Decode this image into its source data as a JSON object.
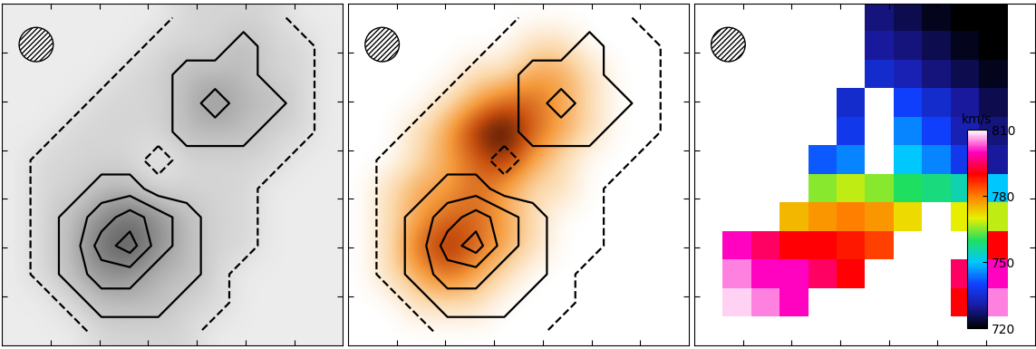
{
  "chart_data": [
    {
      "type": "contour_image",
      "tick_labels": false,
      "contour_levels": [
        0.5,
        1.5,
        2.5,
        3.5,
        4.5
      ],
      "cells": [
        [
          0,
          0,
          0,
          0,
          0,
          0,
          1,
          1,
          1,
          1,
          0,
          0
        ],
        [
          0,
          0,
          0,
          0,
          0,
          1,
          1,
          1,
          2,
          1,
          1,
          0
        ],
        [
          0,
          0,
          0,
          0,
          1,
          1,
          2,
          2,
          2,
          1,
          1,
          0
        ],
        [
          0,
          0,
          0,
          1,
          1,
          1,
          2,
          3,
          2,
          2,
          1,
          0
        ],
        [
          0,
          0,
          1,
          1,
          1,
          1,
          2,
          2,
          2,
          1,
          1,
          0
        ],
        [
          0,
          1,
          1,
          1,
          1,
          0,
          1,
          1,
          1,
          1,
          0,
          0
        ],
        [
          0,
          1,
          1,
          2,
          2,
          1,
          1,
          1,
          1,
          0,
          0,
          0
        ],
        [
          0,
          1,
          2,
          3,
          4,
          3,
          2,
          1,
          1,
          0,
          0,
          0
        ],
        [
          0,
          1,
          2,
          4,
          5,
          3,
          2,
          1,
          1,
          0,
          0,
          0
        ],
        [
          0,
          1,
          2,
          3,
          3,
          2,
          2,
          1,
          0,
          0,
          0,
          0
        ],
        [
          0,
          0,
          1,
          2,
          2,
          2,
          1,
          1,
          0,
          0,
          0,
          0
        ],
        [
          0,
          0,
          0,
          1,
          1,
          1,
          1,
          0,
          0,
          0,
          0,
          0
        ]
      ]
    },
    {
      "type": "image",
      "tick_labels": false,
      "cells": [
        [
          0,
          0,
          0,
          0,
          0,
          0,
          0,
          0,
          0,
          0,
          0,
          0
        ],
        [
          0,
          0,
          0,
          0,
          0,
          0,
          1,
          1,
          0,
          0,
          0,
          0
        ],
        [
          0,
          0,
          0,
          0,
          1,
          1,
          2,
          2,
          1,
          0,
          0,
          0
        ],
        [
          0,
          0,
          0,
          1,
          2,
          3,
          3,
          2,
          1,
          0,
          0,
          0
        ],
        [
          0,
          0,
          1,
          2,
          4,
          5,
          3,
          2,
          1,
          0,
          0,
          0
        ],
        [
          0,
          0,
          1,
          2,
          3,
          4,
          2,
          1,
          0,
          0,
          0,
          0
        ],
        [
          0,
          1,
          2,
          2,
          3,
          2,
          1,
          1,
          0,
          0,
          0,
          0
        ],
        [
          0,
          1,
          2,
          3,
          3,
          2,
          1,
          0,
          0,
          0,
          0,
          0
        ],
        [
          0,
          1,
          3,
          4,
          3,
          2,
          1,
          0,
          0,
          0,
          0,
          0
        ],
        [
          0,
          1,
          2,
          3,
          2,
          1,
          0,
          0,
          0,
          0,
          0,
          0
        ],
        [
          0,
          0,
          1,
          1,
          1,
          0,
          0,
          0,
          0,
          0,
          0,
          0
        ],
        [
          0,
          0,
          0,
          0,
          0,
          0,
          0,
          0,
          0,
          0,
          0,
          0
        ]
      ]
    },
    {
      "type": "velocity_field",
      "tick_labels": false,
      "cells": [
        [
          null,
          null,
          null,
          null,
          null,
          null,
          728,
          725,
          722,
          720,
          720,
          null
        ],
        [
          null,
          null,
          null,
          null,
          null,
          null,
          730,
          728,
          725,
          722,
          720,
          null
        ],
        [
          null,
          null,
          null,
          null,
          null,
          null,
          735,
          732,
          728,
          725,
          722,
          null
        ],
        [
          null,
          null,
          null,
          null,
          null,
          735,
          null,
          740,
          735,
          730,
          725,
          null
        ],
        [
          null,
          null,
          null,
          null,
          null,
          738,
          null,
          745,
          740,
          732,
          728,
          null
        ],
        [
          null,
          null,
          null,
          null,
          742,
          745,
          null,
          750,
          745,
          738,
          730,
          null
        ],
        [
          null,
          null,
          null,
          null,
          765,
          768,
          765,
          760,
          758,
          755,
          750,
          null
        ],
        [
          null,
          null,
          null,
          775,
          778,
          780,
          778,
          772,
          null,
          770,
          768,
          null
        ],
        [
          null,
          800,
          795,
          790,
          790,
          788,
          785,
          null,
          null,
          null,
          790,
          null
        ],
        [
          null,
          805,
          800,
          800,
          795,
          790,
          null,
          null,
          null,
          795,
          800,
          null
        ],
        [
          null,
          808,
          805,
          800,
          null,
          null,
          null,
          null,
          null,
          790,
          805,
          null
        ],
        [
          null,
          null,
          810,
          null,
          null,
          null,
          null,
          null,
          null,
          null,
          null,
          null
        ]
      ],
      "colorbar": {
        "label": "km/s",
        "range": [
          720,
          810
        ],
        "ticks": [
          720,
          750,
          780,
          810
        ]
      }
    }
  ]
}
